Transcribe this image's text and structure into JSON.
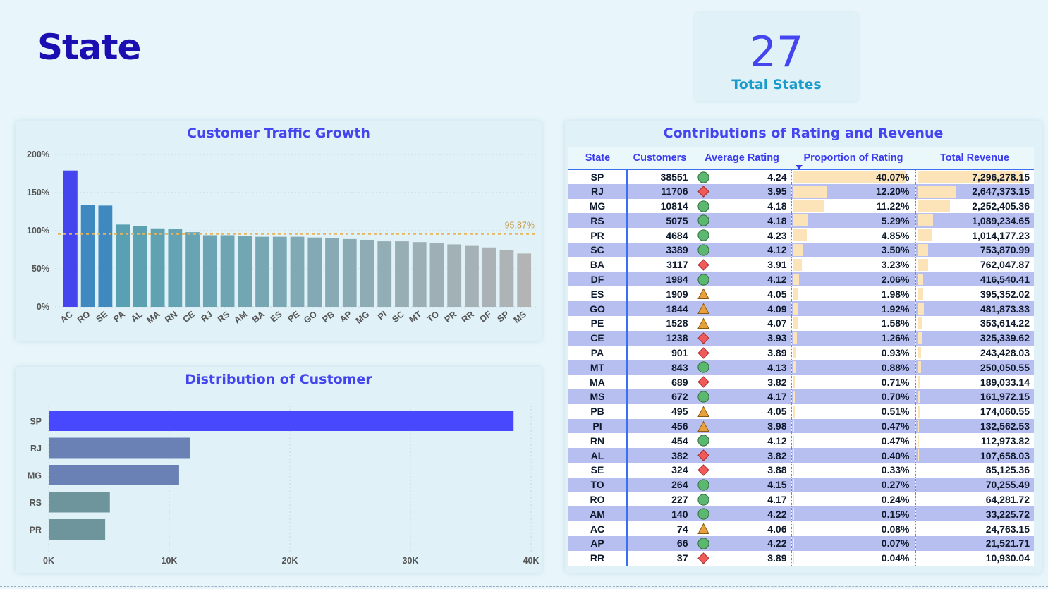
{
  "page": {
    "title": "State"
  },
  "kpi": {
    "value": "27",
    "label": "Total States"
  },
  "colors": {
    "accent": "#4545f0",
    "title": "#1a0fb0",
    "average_line": "#e8b45a",
    "row_alt": "#b7bff0",
    "databar": "#fde3b8"
  },
  "traffic_chart": {
    "chart_data": {
      "type": "bar",
      "title": "Customer Traffic Growth",
      "categories": [
        "AC",
        "RO",
        "SE",
        "PA",
        "AL",
        "MA",
        "RN",
        "CE",
        "RJ",
        "RS",
        "AM",
        "BA",
        "ES",
        "PE",
        "GO",
        "PB",
        "AP",
        "MG",
        "PI",
        "SC",
        "MT",
        "TO",
        "PR",
        "RR",
        "DF",
        "SP",
        "MS"
      ],
      "values": [
        179,
        134,
        133,
        108,
        106,
        103,
        102,
        98,
        94,
        94,
        93,
        92,
        92,
        92,
        91,
        90,
        89,
        88,
        86,
        86,
        85,
        84,
        82,
        80,
        78,
        75,
        70
      ],
      "yticks": [
        "0%",
        "50%",
        "100%",
        "150%",
        "200%"
      ],
      "ylim": [
        0,
        200
      ],
      "average_value": 95.87,
      "average_label": "95.87%",
      "grid": true
    }
  },
  "distribution_chart": {
    "chart_data": {
      "type": "bar",
      "orientation": "horizontal",
      "title": "Distribution of Customer",
      "categories": [
        "SP",
        "RJ",
        "MG",
        "RS",
        "PR"
      ],
      "values": [
        38551,
        11706,
        10814,
        5075,
        4684
      ],
      "xticks": [
        "0K",
        "10K",
        "20K",
        "30K",
        "40K"
      ],
      "xlim": [
        0,
        40000
      ],
      "grid": true
    }
  },
  "table": {
    "title": "Contributions of Rating and Revenue",
    "columns": [
      "State",
      "Customers",
      "Average Rating",
      "Proportion of Rating",
      "Total Revenue"
    ],
    "sort_column": "Proportion of Rating",
    "rows": [
      {
        "state": "SP",
        "customers": "38551",
        "icon": "green-circle",
        "rating": "4.24",
        "prop": "40.07%",
        "prop_value": 40.07,
        "revenue": "7,296,278.15",
        "revenue_value": 7296278.15
      },
      {
        "state": "RJ",
        "customers": "11706",
        "icon": "red-diamond",
        "rating": "3.95",
        "prop": "12.20%",
        "prop_value": 12.2,
        "revenue": "2,647,373.15",
        "revenue_value": 2647373.15
      },
      {
        "state": "MG",
        "customers": "10814",
        "icon": "green-circle",
        "rating": "4.18",
        "prop": "11.22%",
        "prop_value": 11.22,
        "revenue": "2,252,405.36",
        "revenue_value": 2252405.36
      },
      {
        "state": "RS",
        "customers": "5075",
        "icon": "green-circle",
        "rating": "4.18",
        "prop": "5.29%",
        "prop_value": 5.29,
        "revenue": "1,089,234.65",
        "revenue_value": 1089234.65
      },
      {
        "state": "PR",
        "customers": "4684",
        "icon": "green-circle",
        "rating": "4.23",
        "prop": "4.85%",
        "prop_value": 4.85,
        "revenue": "1,014,177.23",
        "revenue_value": 1014177.23
      },
      {
        "state": "SC",
        "customers": "3389",
        "icon": "green-circle",
        "rating": "4.12",
        "prop": "3.50%",
        "prop_value": 3.5,
        "revenue": "753,870.99",
        "revenue_value": 753870.99
      },
      {
        "state": "BA",
        "customers": "3117",
        "icon": "red-diamond",
        "rating": "3.91",
        "prop": "3.23%",
        "prop_value": 3.23,
        "revenue": "762,047.87",
        "revenue_value": 762047.87
      },
      {
        "state": "DF",
        "customers": "1984",
        "icon": "green-circle",
        "rating": "4.12",
        "prop": "2.06%",
        "prop_value": 2.06,
        "revenue": "416,540.41",
        "revenue_value": 416540.41
      },
      {
        "state": "ES",
        "customers": "1909",
        "icon": "orange-triangle",
        "rating": "4.05",
        "prop": "1.98%",
        "prop_value": 1.98,
        "revenue": "395,352.02",
        "revenue_value": 395352.02
      },
      {
        "state": "GO",
        "customers": "1844",
        "icon": "orange-triangle",
        "rating": "4.09",
        "prop": "1.92%",
        "prop_value": 1.92,
        "revenue": "481,873.33",
        "revenue_value": 481873.33
      },
      {
        "state": "PE",
        "customers": "1528",
        "icon": "orange-triangle",
        "rating": "4.07",
        "prop": "1.58%",
        "prop_value": 1.58,
        "revenue": "353,614.22",
        "revenue_value": 353614.22
      },
      {
        "state": "CE",
        "customers": "1238",
        "icon": "red-diamond",
        "rating": "3.93",
        "prop": "1.26%",
        "prop_value": 1.26,
        "revenue": "325,339.62",
        "revenue_value": 325339.62
      },
      {
        "state": "PA",
        "customers": "901",
        "icon": "red-diamond",
        "rating": "3.89",
        "prop": "0.93%",
        "prop_value": 0.93,
        "revenue": "243,428.03",
        "revenue_value": 243428.03
      },
      {
        "state": "MT",
        "customers": "843",
        "icon": "green-circle",
        "rating": "4.13",
        "prop": "0.88%",
        "prop_value": 0.88,
        "revenue": "250,050.55",
        "revenue_value": 250050.55
      },
      {
        "state": "MA",
        "customers": "689",
        "icon": "red-diamond",
        "rating": "3.82",
        "prop": "0.71%",
        "prop_value": 0.71,
        "revenue": "189,033.14",
        "revenue_value": 189033.14
      },
      {
        "state": "MS",
        "customers": "672",
        "icon": "green-circle",
        "rating": "4.17",
        "prop": "0.70%",
        "prop_value": 0.7,
        "revenue": "161,972.15",
        "revenue_value": 161972.15
      },
      {
        "state": "PB",
        "customers": "495",
        "icon": "orange-triangle",
        "rating": "4.05",
        "prop": "0.51%",
        "prop_value": 0.51,
        "revenue": "174,060.55",
        "revenue_value": 174060.55
      },
      {
        "state": "PI",
        "customers": "456",
        "icon": "orange-triangle",
        "rating": "3.98",
        "prop": "0.47%",
        "prop_value": 0.47,
        "revenue": "132,562.53",
        "revenue_value": 132562.53
      },
      {
        "state": "RN",
        "customers": "454",
        "icon": "green-circle",
        "rating": "4.12",
        "prop": "0.47%",
        "prop_value": 0.47,
        "revenue": "112,973.82",
        "revenue_value": 112973.82
      },
      {
        "state": "AL",
        "customers": "382",
        "icon": "red-diamond",
        "rating": "3.82",
        "prop": "0.40%",
        "prop_value": 0.4,
        "revenue": "107,658.03",
        "revenue_value": 107658.03
      },
      {
        "state": "SE",
        "customers": "324",
        "icon": "red-diamond",
        "rating": "3.88",
        "prop": "0.33%",
        "prop_value": 0.33,
        "revenue": "85,125.36",
        "revenue_value": 85125.36
      },
      {
        "state": "TO",
        "customers": "264",
        "icon": "green-circle",
        "rating": "4.15",
        "prop": "0.27%",
        "prop_value": 0.27,
        "revenue": "70,255.49",
        "revenue_value": 70255.49
      },
      {
        "state": "RO",
        "customers": "227",
        "icon": "green-circle",
        "rating": "4.17",
        "prop": "0.24%",
        "prop_value": 0.24,
        "revenue": "64,281.72",
        "revenue_value": 64281.72
      },
      {
        "state": "AM",
        "customers": "140",
        "icon": "green-circle",
        "rating": "4.22",
        "prop": "0.15%",
        "prop_value": 0.15,
        "revenue": "33,225.72",
        "revenue_value": 33225.72
      },
      {
        "state": "AC",
        "customers": "74",
        "icon": "orange-triangle",
        "rating": "4.06",
        "prop": "0.08%",
        "prop_value": 0.08,
        "revenue": "24,763.15",
        "revenue_value": 24763.15
      },
      {
        "state": "AP",
        "customers": "66",
        "icon": "green-circle",
        "rating": "4.22",
        "prop": "0.07%",
        "prop_value": 0.07,
        "revenue": "21,521.71",
        "revenue_value": 21521.71
      },
      {
        "state": "RR",
        "customers": "37",
        "icon": "red-diamond",
        "rating": "3.89",
        "prop": "0.04%",
        "prop_value": 0.04,
        "revenue": "10,930.04",
        "revenue_value": 10930.04
      }
    ]
  }
}
